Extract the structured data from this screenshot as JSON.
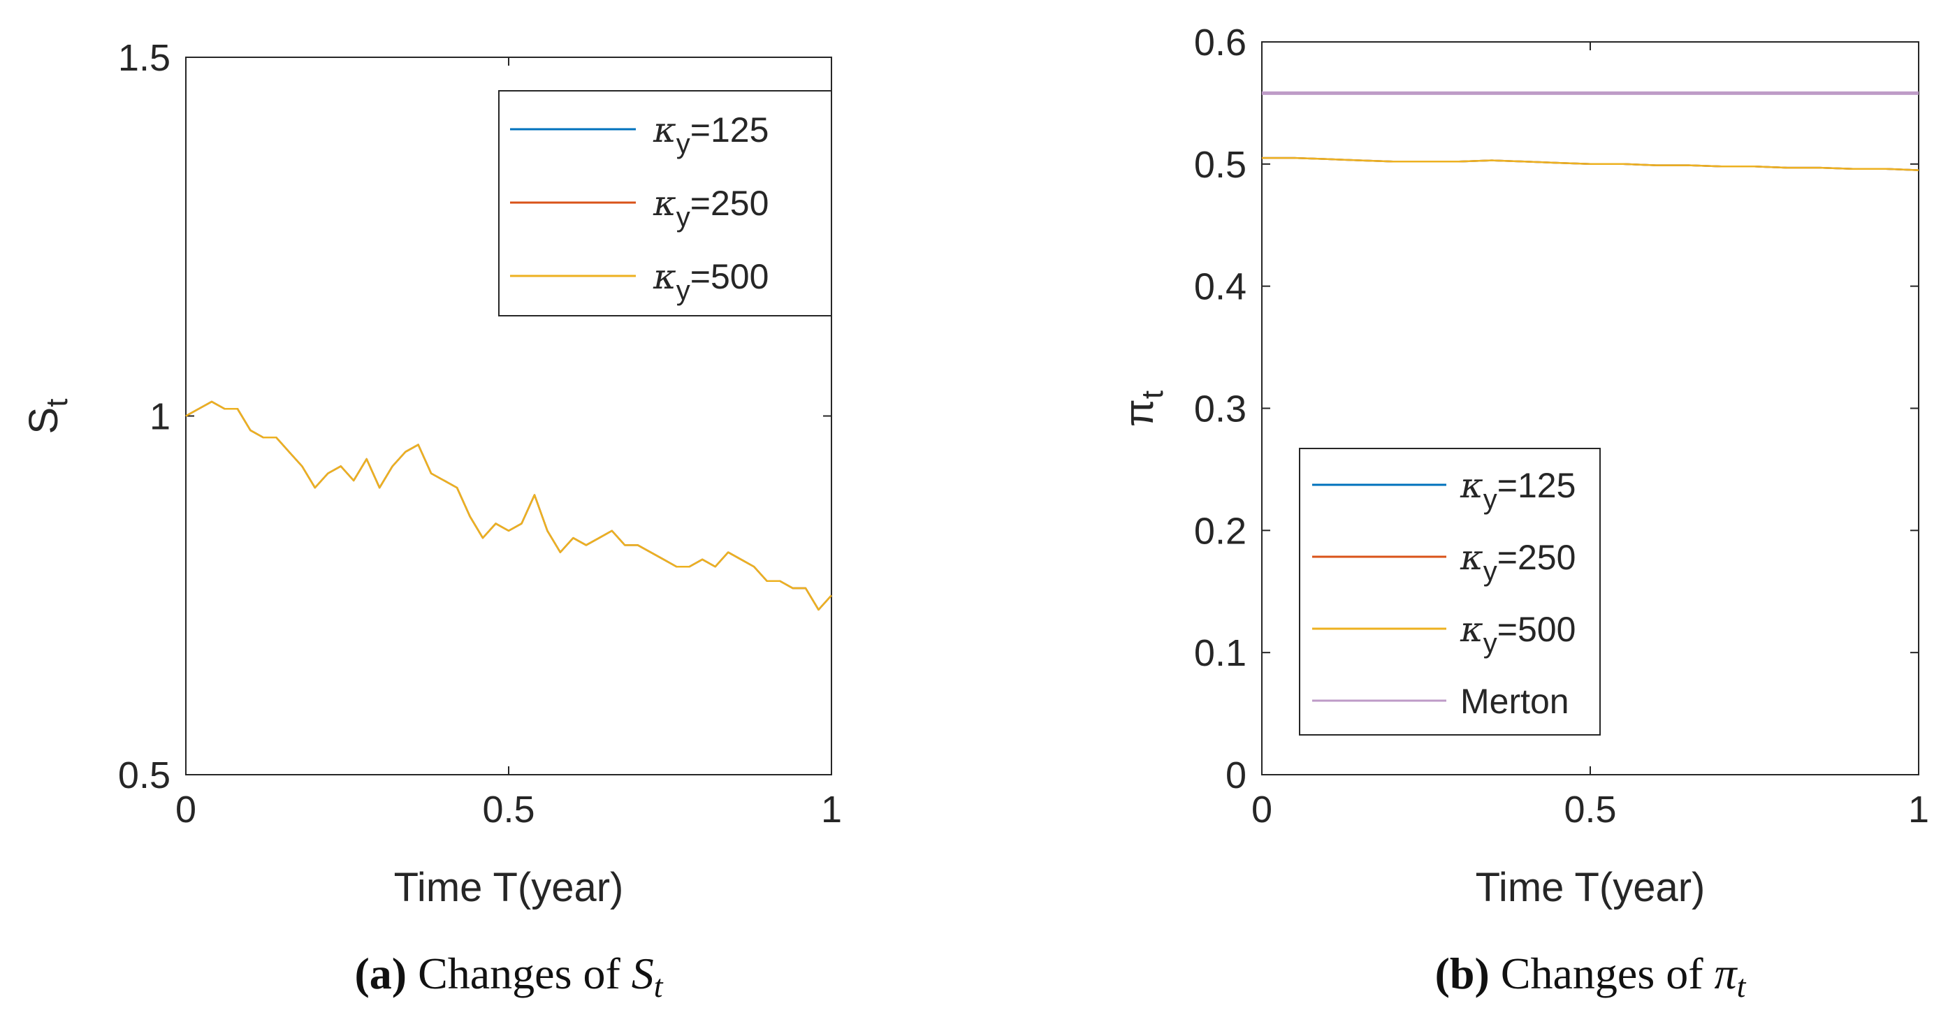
{
  "chart_data": [
    {
      "type": "line",
      "id": "a",
      "xlabel": "Time T(year)",
      "ylabel": "S",
      "ylabel_sub": "t",
      "xlim": [
        0,
        1
      ],
      "ylim": [
        0.5,
        1.5
      ],
      "xticks": [
        "0",
        "0.5",
        "1"
      ],
      "yticks": [
        "0.5",
        "1",
        "1.5"
      ],
      "xtick_values": [
        0,
        0.5,
        1
      ],
      "ytick_values": [
        0.5,
        1,
        1.5
      ],
      "caption": {
        "letter": "a",
        "text": "Changes of ",
        "var": "S",
        "sub": "t"
      },
      "legend_position": "top-right",
      "series": [
        {
          "name_base": "κ",
          "name_sub": "y",
          "name_rest": "=125",
          "color": "#0072BD",
          "x": [
            0,
            0.02,
            0.04,
            0.06,
            0.08,
            0.1,
            0.12,
            0.14,
            0.16,
            0.18,
            0.2,
            0.22,
            0.24,
            0.26,
            0.28,
            0.3,
            0.32,
            0.34,
            0.36,
            0.38,
            0.4,
            0.42,
            0.44,
            0.46,
            0.48,
            0.5,
            0.52,
            0.54,
            0.56,
            0.58,
            0.6,
            0.62,
            0.64,
            0.66,
            0.68,
            0.7,
            0.72,
            0.74,
            0.76,
            0.78,
            0.8,
            0.82,
            0.84,
            0.86,
            0.88,
            0.9,
            0.92,
            0.94,
            0.96,
            0.98,
            1.0
          ],
          "y": [
            1.0,
            1.01,
            1.02,
            1.01,
            1.01,
            0.98,
            0.97,
            0.97,
            0.95,
            0.93,
            0.9,
            0.92,
            0.93,
            0.91,
            0.94,
            0.9,
            0.93,
            0.95,
            0.96,
            0.92,
            0.91,
            0.9,
            0.86,
            0.83,
            0.85,
            0.84,
            0.85,
            0.89,
            0.84,
            0.81,
            0.83,
            0.82,
            0.83,
            0.84,
            0.82,
            0.82,
            0.81,
            0.8,
            0.79,
            0.79,
            0.8,
            0.79,
            0.81,
            0.8,
            0.79,
            0.77,
            0.77,
            0.76,
            0.76,
            0.73,
            0.75
          ]
        },
        {
          "name_base": "κ",
          "name_sub": "y",
          "name_rest": "=250",
          "color": "#D95319",
          "x": [
            0,
            0.02,
            0.04,
            0.06,
            0.08,
            0.1,
            0.12,
            0.14,
            0.16,
            0.18,
            0.2,
            0.22,
            0.24,
            0.26,
            0.28,
            0.3,
            0.32,
            0.34,
            0.36,
            0.38,
            0.4,
            0.42,
            0.44,
            0.46,
            0.48,
            0.5,
            0.52,
            0.54,
            0.56,
            0.58,
            0.6,
            0.62,
            0.64,
            0.66,
            0.68,
            0.7,
            0.72,
            0.74,
            0.76,
            0.78,
            0.8,
            0.82,
            0.84,
            0.86,
            0.88,
            0.9,
            0.92,
            0.94,
            0.96,
            0.98,
            1.0
          ],
          "y": [
            1.0,
            1.01,
            1.02,
            1.01,
            1.01,
            0.98,
            0.97,
            0.97,
            0.95,
            0.93,
            0.9,
            0.92,
            0.93,
            0.91,
            0.94,
            0.9,
            0.93,
            0.95,
            0.96,
            0.92,
            0.91,
            0.9,
            0.86,
            0.83,
            0.85,
            0.84,
            0.85,
            0.89,
            0.84,
            0.81,
            0.83,
            0.82,
            0.83,
            0.84,
            0.82,
            0.82,
            0.81,
            0.8,
            0.79,
            0.79,
            0.8,
            0.79,
            0.81,
            0.8,
            0.79,
            0.77,
            0.77,
            0.76,
            0.76,
            0.73,
            0.75
          ]
        },
        {
          "name_base": "κ",
          "name_sub": "y",
          "name_rest": "=500",
          "color": "#EDB120",
          "x": [
            0,
            0.02,
            0.04,
            0.06,
            0.08,
            0.1,
            0.12,
            0.14,
            0.16,
            0.18,
            0.2,
            0.22,
            0.24,
            0.26,
            0.28,
            0.3,
            0.32,
            0.34,
            0.36,
            0.38,
            0.4,
            0.42,
            0.44,
            0.46,
            0.48,
            0.5,
            0.52,
            0.54,
            0.56,
            0.58,
            0.6,
            0.62,
            0.64,
            0.66,
            0.68,
            0.7,
            0.72,
            0.74,
            0.76,
            0.78,
            0.8,
            0.82,
            0.84,
            0.86,
            0.88,
            0.9,
            0.92,
            0.94,
            0.96,
            0.98,
            1.0
          ],
          "y": [
            1.0,
            1.01,
            1.02,
            1.01,
            1.01,
            0.98,
            0.97,
            0.97,
            0.95,
            0.93,
            0.9,
            0.92,
            0.93,
            0.91,
            0.94,
            0.9,
            0.93,
            0.95,
            0.96,
            0.92,
            0.91,
            0.9,
            0.86,
            0.83,
            0.85,
            0.84,
            0.85,
            0.89,
            0.84,
            0.81,
            0.83,
            0.82,
            0.83,
            0.84,
            0.82,
            0.82,
            0.81,
            0.8,
            0.79,
            0.79,
            0.8,
            0.79,
            0.81,
            0.8,
            0.79,
            0.77,
            0.77,
            0.76,
            0.76,
            0.73,
            0.75
          ]
        }
      ]
    },
    {
      "type": "line",
      "id": "b",
      "xlabel": "Time T(year)",
      "ylabel": "π",
      "ylabel_sub": "t",
      "xlim": [
        0,
        1
      ],
      "ylim": [
        0,
        0.6
      ],
      "xticks": [
        "0",
        "0.5",
        "1"
      ],
      "yticks": [
        "0",
        "0.1",
        "0.2",
        "0.3",
        "0.4",
        "0.5",
        "0.6"
      ],
      "xtick_values": [
        0,
        0.5,
        1
      ],
      "ytick_values": [
        0,
        0.1,
        0.2,
        0.3,
        0.4,
        0.5,
        0.6
      ],
      "caption": {
        "letter": "b",
        "text": "Changes of ",
        "var": "π",
        "sub": "t"
      },
      "legend_position": "bottom-left",
      "series": [
        {
          "name_base": "κ",
          "name_sub": "y",
          "name_rest": "=125",
          "color": "#0072BD",
          "x": [
            0,
            0.05,
            0.1,
            0.15,
            0.2,
            0.25,
            0.3,
            0.35,
            0.4,
            0.45,
            0.5,
            0.55,
            0.6,
            0.65,
            0.7,
            0.75,
            0.8,
            0.85,
            0.9,
            0.95,
            1.0
          ],
          "y": [
            0.505,
            0.505,
            0.504,
            0.503,
            0.502,
            0.502,
            0.502,
            0.503,
            0.502,
            0.501,
            0.5,
            0.5,
            0.499,
            0.499,
            0.498,
            0.498,
            0.497,
            0.497,
            0.496,
            0.496,
            0.495
          ]
        },
        {
          "name_base": "κ",
          "name_sub": "y",
          "name_rest": "=250",
          "color": "#D95319",
          "x": [
            0,
            0.05,
            0.1,
            0.15,
            0.2,
            0.25,
            0.3,
            0.35,
            0.4,
            0.45,
            0.5,
            0.55,
            0.6,
            0.65,
            0.7,
            0.75,
            0.8,
            0.85,
            0.9,
            0.95,
            1.0
          ],
          "y": [
            0.505,
            0.505,
            0.504,
            0.503,
            0.502,
            0.502,
            0.502,
            0.503,
            0.502,
            0.501,
            0.5,
            0.5,
            0.499,
            0.499,
            0.498,
            0.498,
            0.497,
            0.497,
            0.496,
            0.496,
            0.495
          ]
        },
        {
          "name_base": "κ",
          "name_sub": "y",
          "name_rest": "=500",
          "color": "#EDB120",
          "x": [
            0,
            0.05,
            0.1,
            0.15,
            0.2,
            0.25,
            0.3,
            0.35,
            0.4,
            0.45,
            0.5,
            0.55,
            0.6,
            0.65,
            0.7,
            0.75,
            0.8,
            0.85,
            0.9,
            0.95,
            1.0
          ],
          "y": [
            0.505,
            0.505,
            0.504,
            0.503,
            0.502,
            0.502,
            0.502,
            0.503,
            0.502,
            0.501,
            0.5,
            0.5,
            0.499,
            0.499,
            0.498,
            0.498,
            0.497,
            0.497,
            0.496,
            0.496,
            0.495
          ]
        },
        {
          "name": "Merton",
          "color": "#BE9BC7",
          "x": [
            0,
            1
          ],
          "y": [
            0.558,
            0.558
          ]
        }
      ]
    }
  ]
}
